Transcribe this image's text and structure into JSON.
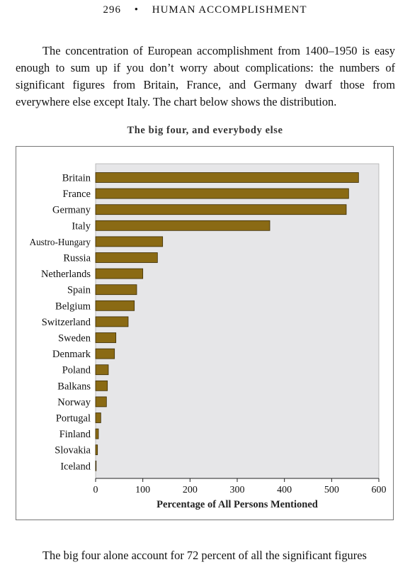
{
  "header": {
    "page_number": "296",
    "separator": "•",
    "book_title": "HUMAN ACCOMPLISHMENT"
  },
  "intro_paragraph": "The concentration of European accomplishment from 1400–1950 is easy enough to sum up if you don’t worry about complications: the numbers of significant figures from Britain, France, and Germany dwarf those from everywhere else except Italy. The chart below shows the distribution.",
  "closing_paragraph": "The big four alone account for 72 percent of all the significant figures",
  "chart_data": {
    "type": "bar",
    "orientation": "horizontal",
    "title": "The big four, and everybody else",
    "xlabel": "Percentage of All Persons Mentioned",
    "ylabel": "",
    "xlim": [
      0,
      600
    ],
    "xticks": [
      0,
      100,
      200,
      300,
      400,
      500,
      600
    ],
    "grid": false,
    "categories": [
      "Britain",
      "France",
      "Germany",
      "Italy",
      "Austro-Hungary",
      "Russia",
      "Netherlands",
      "Spain",
      "Belgium",
      "Switzerland",
      "Sweden",
      "Denmark",
      "Poland",
      "Balkans",
      "Norway",
      "Portugal",
      "Finland",
      "Slovakia",
      "Iceland"
    ],
    "values": [
      557,
      536,
      531,
      369,
      142,
      131,
      100,
      87,
      82,
      69,
      43,
      40,
      27,
      25,
      23,
      11,
      6,
      4,
      1
    ],
    "colors": {
      "bar_fill": "#8a6a14",
      "bar_stroke": "#3b2c05",
      "plot_background": "#e6e6e8",
      "axis": "#222222"
    }
  }
}
